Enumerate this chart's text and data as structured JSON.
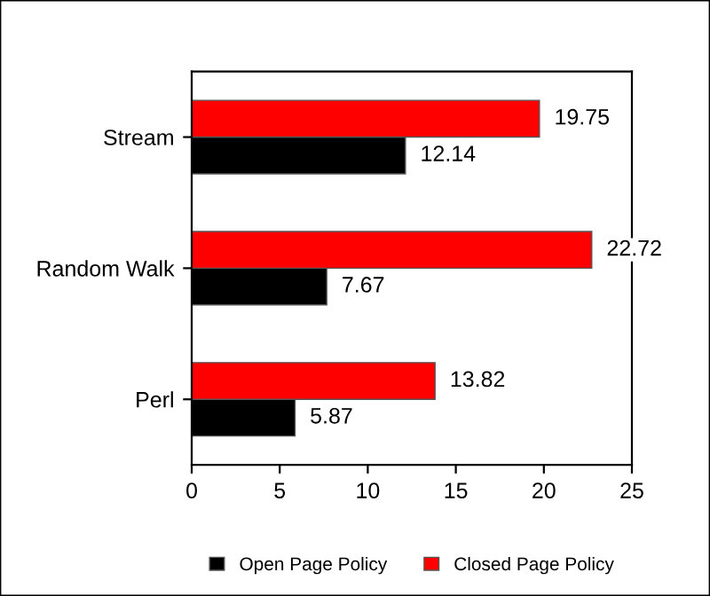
{
  "chart_data": {
    "type": "bar",
    "orientation": "horizontal",
    "categories": [
      "Stream",
      "Random Walk",
      "Perl"
    ],
    "series": [
      {
        "name": "Open Page Policy",
        "color": "#000000",
        "values": [
          12.14,
          7.67,
          5.87
        ]
      },
      {
        "name": "Closed Page Policy",
        "color": "#ff0000",
        "values": [
          19.75,
          22.72,
          13.82
        ]
      }
    ],
    "xlim": [
      0,
      25
    ],
    "xticks": [
      0,
      5,
      10,
      15,
      20,
      25
    ],
    "data_labels": true,
    "grid": false,
    "legend": "bottom"
  }
}
